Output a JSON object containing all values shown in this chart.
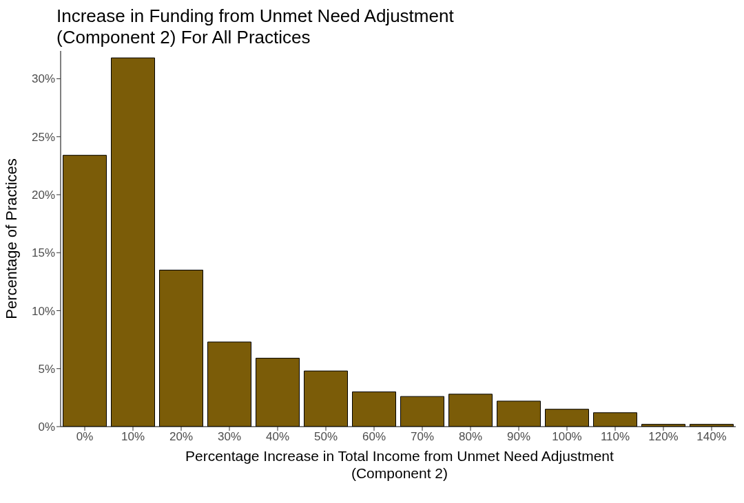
{
  "chart_data": {
    "type": "bar",
    "title": "Increase in Funding from Unmet Need Adjustment\n(Component 2) For All Practices",
    "xlabel": "Percentage Increase in Total Income from Unmet Need Adjustment\n(Component 2)",
    "ylabel": "Percentage of Practices",
    "categories": [
      "0%",
      "10%",
      "20%",
      "30%",
      "40%",
      "50%",
      "60%",
      "70%",
      "80%",
      "90%",
      "100%",
      "110%",
      "120%",
      "140%"
    ],
    "values": [
      23.4,
      31.8,
      13.5,
      7.3,
      5.9,
      4.8,
      3.0,
      2.6,
      2.8,
      2.2,
      1.5,
      1.2,
      0.2,
      0.2
    ],
    "color": "#7b5c08",
    "ylim": [
      0,
      32.4
    ],
    "yticks": [
      {
        "value": 0,
        "label": "0%"
      },
      {
        "value": 5,
        "label": "5%"
      },
      {
        "value": 10,
        "label": "10%"
      },
      {
        "value": 15,
        "label": "15%"
      },
      {
        "value": 20,
        "label": "20%"
      },
      {
        "value": 25,
        "label": "25%"
      },
      {
        "value": 30,
        "label": "30%"
      }
    ],
    "grid": false,
    "legend": false
  }
}
